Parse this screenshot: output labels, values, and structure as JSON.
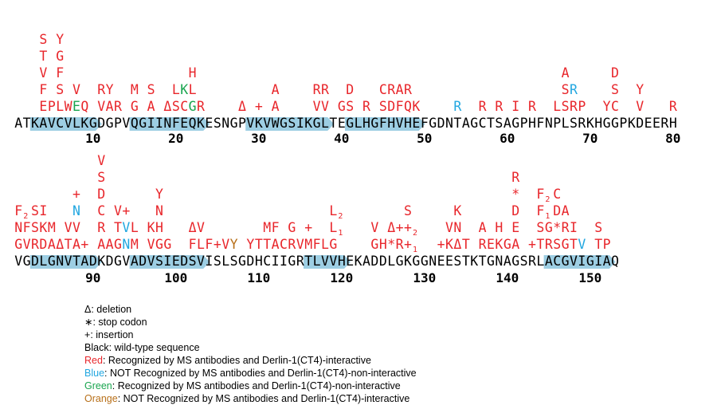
{
  "colors": {
    "red": "#e8262b",
    "blue": "#22a7e0",
    "green": "#1aa54f",
    "orange": "#b8701a",
    "black": "#000000",
    "strand": "#9dcee3"
  },
  "sequence": {
    "line1": "ATKAVCVLKGDGPVQGIINFEQKESNGPVKVWGSIKGLTEGLHGFHVHEFGDNTAGCTSAGPHFNPLSRKHGGPKDEERH",
    "line2": "VGDLGNVTADKDGVADVSIEDSVISLSGDHCIIGRTLVVHEKADDLGKGGNEESTKTGNAGSRLACGVIGIAQ",
    "ticks1": [
      "10",
      "20",
      "30",
      "40",
      "50",
      "60",
      "70",
      "80"
    ],
    "ticks2": [
      "90",
      "100",
      "110",
      "120",
      "130",
      "140",
      "150"
    ]
  },
  "mutations": [
    {
      "pos": 4,
      "stack": [
        {
          "t": "E",
          "c": "red"
        },
        {
          "t": "F",
          "c": "red"
        },
        {
          "t": "V",
          "c": "red"
        },
        {
          "t": "T",
          "c": "red"
        },
        {
          "t": "S",
          "c": "red"
        }
      ]
    },
    {
      "pos": 5,
      "stack": [
        {
          "t": "P",
          "c": "red"
        }
      ]
    },
    {
      "pos": 6,
      "stack": [
        {
          "t": "L",
          "c": "red"
        },
        {
          "t": "S",
          "c": "red"
        },
        {
          "t": "F",
          "c": "red"
        },
        {
          "t": "G",
          "c": "red"
        },
        {
          "t": "Y",
          "c": "red"
        }
      ]
    },
    {
      "pos": 7,
      "stack": [
        {
          "t": "W",
          "c": "red"
        }
      ]
    },
    {
      "pos": 8,
      "stack": [
        {
          "t": "E",
          "c": "green"
        },
        {
          "t": "V",
          "c": "red"
        }
      ]
    },
    {
      "pos": 9,
      "stack": [
        {
          "t": "Q",
          "c": "red"
        }
      ]
    },
    {
      "pos": 11,
      "stack": [
        {
          "t": "V",
          "c": "red"
        },
        {
          "t": "R",
          "c": "red"
        }
      ]
    },
    {
      "pos": 12,
      "stack": [
        {
          "t": "A",
          "c": "red"
        },
        {
          "t": "Y",
          "c": "red"
        }
      ]
    },
    {
      "pos": 13,
      "stack": [
        {
          "t": "R",
          "c": "red"
        }
      ]
    },
    {
      "pos": 15,
      "stack": [
        {
          "t": "G",
          "c": "red"
        },
        {
          "t": "M",
          "c": "red"
        }
      ]
    },
    {
      "pos": 17,
      "stack": [
        {
          "t": "A",
          "c": "red"
        },
        {
          "t": "S",
          "c": "red"
        }
      ]
    },
    {
      "pos": 19,
      "stack": [
        {
          "t": "Δ",
          "c": "red"
        }
      ]
    },
    {
      "pos": 20,
      "stack": [
        {
          "t": "S",
          "c": "red"
        },
        {
          "t": "L",
          "c": "red"
        }
      ]
    },
    {
      "pos": 21,
      "stack": [
        {
          "t": "C",
          "c": "red"
        },
        {
          "t": "K",
          "c": "green"
        }
      ]
    },
    {
      "pos": 22,
      "stack": [
        {
          "t": "G",
          "c": "green"
        },
        {
          "t": "L",
          "c": "red"
        },
        {
          "t": "H",
          "c": "red"
        }
      ]
    },
    {
      "pos": 23,
      "stack": [
        {
          "t": "R",
          "c": "red"
        }
      ]
    },
    {
      "pos": 28,
      "stack": [
        {
          "t": "Δ",
          "c": "red"
        }
      ]
    },
    {
      "pos": 30,
      "stack": [
        {
          "t": "+",
          "c": "red"
        }
      ]
    },
    {
      "pos": 32,
      "stack": [
        {
          "t": "A",
          "c": "red"
        },
        {
          "t": "A",
          "c": "red"
        }
      ]
    },
    {
      "pos": 37,
      "stack": [
        {
          "t": "V",
          "c": "red"
        },
        {
          "t": "R",
          "c": "red"
        }
      ]
    },
    {
      "pos": 38,
      "stack": [
        {
          "t": "V",
          "c": "red"
        },
        {
          "t": "R",
          "c": "red"
        }
      ]
    },
    {
      "pos": 40,
      "stack": [
        {
          "t": "G",
          "c": "red"
        }
      ]
    },
    {
      "pos": 41,
      "stack": [
        {
          "t": "S",
          "c": "red"
        },
        {
          "t": "D",
          "c": "red"
        }
      ]
    },
    {
      "pos": 43,
      "stack": [
        {
          "t": "R",
          "c": "red"
        }
      ]
    },
    {
      "pos": 45,
      "stack": [
        {
          "t": "S",
          "c": "red"
        },
        {
          "t": "C",
          "c": "red"
        }
      ]
    },
    {
      "pos": 46,
      "stack": [
        {
          "t": "D",
          "c": "red"
        },
        {
          "t": "R",
          "c": "red"
        }
      ]
    },
    {
      "pos": 47,
      "stack": [
        {
          "t": "F",
          "c": "red"
        },
        {
          "t": "A",
          "c": "red"
        }
      ]
    },
    {
      "pos": 48,
      "stack": [
        {
          "t": "Q",
          "c": "red"
        },
        {
          "t": "R",
          "c": "red"
        }
      ]
    },
    {
      "pos": 49,
      "stack": [
        {
          "t": "K",
          "c": "red"
        }
      ]
    },
    {
      "pos": 54,
      "stack": [
        {
          "t": "R",
          "c": "blue"
        }
      ]
    },
    {
      "pos": 57,
      "stack": [
        {
          "t": "R",
          "c": "red"
        }
      ]
    },
    {
      "pos": 59,
      "stack": [
        {
          "t": "R",
          "c": "red"
        }
      ]
    },
    {
      "pos": 61,
      "stack": [
        {
          "t": "I",
          "c": "red"
        }
      ]
    },
    {
      "pos": 63,
      "stack": [
        {
          "t": "R",
          "c": "red"
        }
      ]
    },
    {
      "pos": 66,
      "stack": [
        {
          "t": "L",
          "c": "red"
        }
      ]
    },
    {
      "pos": 67,
      "stack": [
        {
          "t": "S",
          "c": "red"
        },
        {
          "t": "S",
          "c": "red"
        },
        {
          "t": "A",
          "c": "red"
        }
      ]
    },
    {
      "pos": 68,
      "stack": [
        {
          "t": "R",
          "c": "red"
        },
        {
          "t": "R",
          "c": "blue"
        }
      ]
    },
    {
      "pos": 69,
      "stack": [
        {
          "t": "P",
          "c": "red"
        }
      ]
    },
    {
      "pos": 72,
      "stack": [
        {
          "t": "Y",
          "c": "red"
        }
      ]
    },
    {
      "pos": 73,
      "stack": [
        {
          "t": "C",
          "c": "red"
        },
        {
          "t": "S",
          "c": "red"
        },
        {
          "t": "D",
          "c": "red"
        }
      ]
    },
    {
      "pos": 76,
      "stack": [
        {
          "t": "V",
          "c": "red"
        },
        {
          "t": "Y",
          "c": "red"
        }
      ]
    },
    {
      "pos": 80,
      "stack": [
        {
          "t": "R",
          "c": "red"
        }
      ]
    },
    {
      "pos": 81,
      "stack": [
        {
          "t": "G",
          "c": "red"
        },
        {
          "t": "N",
          "c": "red"
        },
        {
          "t": "F",
          "c": "red",
          "sub": "2"
        }
      ]
    },
    {
      "pos": 82,
      "stack": [
        {
          "t": "V",
          "c": "red"
        },
        {
          "t": "F",
          "c": "red"
        }
      ]
    },
    {
      "pos": 83,
      "stack": [
        {
          "t": "R",
          "c": "red"
        },
        {
          "t": "S",
          "c": "red"
        },
        {
          "t": "S",
          "c": "red"
        }
      ]
    },
    {
      "pos": 84,
      "stack": [
        {
          "t": "D",
          "c": "red"
        },
        {
          "t": "K",
          "c": "red"
        },
        {
          "t": "I",
          "c": "red"
        }
      ]
    },
    {
      "pos": 85,
      "stack": [
        {
          "t": "A",
          "c": "red"
        },
        {
          "t": "M",
          "c": "red"
        }
      ]
    },
    {
      "pos": 86,
      "stack": [
        {
          "t": "Δ",
          "c": "red"
        }
      ]
    },
    {
      "pos": 87,
      "stack": [
        {
          "t": "T",
          "c": "red"
        },
        {
          "t": "V",
          "c": "red"
        }
      ]
    },
    {
      "pos": 88,
      "stack": [
        {
          "t": "A",
          "c": "red"
        },
        {
          "t": "V",
          "c": "red"
        },
        {
          "t": "N",
          "c": "blue"
        },
        {
          "t": "+",
          "c": "red"
        }
      ]
    },
    {
      "pos": 89,
      "stack": [
        {
          "t": "+",
          "c": "red"
        }
      ]
    },
    {
      "pos": 91,
      "stack": [
        {
          "t": "A",
          "c": "red"
        },
        {
          "t": "R",
          "c": "red"
        },
        {
          "t": "C",
          "c": "red"
        },
        {
          "t": "D",
          "c": "red"
        },
        {
          "t": "S",
          "c": "red"
        },
        {
          "t": "V",
          "c": "red"
        }
      ]
    },
    {
      "pos": 92,
      "stack": [
        {
          "t": "A",
          "c": "red"
        }
      ]
    },
    {
      "pos": 93,
      "stack": [
        {
          "t": "G",
          "c": "red"
        },
        {
          "t": "T",
          "c": "red"
        },
        {
          "t": "V",
          "c": "red"
        }
      ]
    },
    {
      "pos": 94,
      "stack": [
        {
          "t": "N",
          "c": "blue"
        },
        {
          "t": "V",
          "c": "blue"
        },
        {
          "t": "+",
          "c": "red"
        }
      ]
    },
    {
      "pos": 95,
      "stack": [
        {
          "t": "M",
          "c": "red"
        },
        {
          "t": "L",
          "c": "red"
        }
      ]
    },
    {
      "pos": 97,
      "stack": [
        {
          "t": "V",
          "c": "red"
        },
        {
          "t": "K",
          "c": "red"
        }
      ]
    },
    {
      "pos": 98,
      "stack": [
        {
          "t": "G",
          "c": "red"
        },
        {
          "t": "H",
          "c": "red"
        },
        {
          "t": "N",
          "c": "red"
        },
        {
          "t": "Y",
          "c": "red"
        }
      ]
    },
    {
      "pos": 99,
      "stack": [
        {
          "t": "G",
          "c": "red"
        }
      ]
    },
    {
      "pos": 102,
      "stack": [
        {
          "t": "F",
          "c": "red"
        },
        {
          "t": "Δ",
          "c": "red"
        }
      ]
    },
    {
      "pos": 103,
      "stack": [
        {
          "t": "L",
          "c": "red"
        },
        {
          "t": "V",
          "c": "red"
        }
      ]
    },
    {
      "pos": 104,
      "stack": [
        {
          "t": "F",
          "c": "red"
        }
      ]
    },
    {
      "pos": 105,
      "stack": [
        {
          "t": "+",
          "c": "red"
        }
      ]
    },
    {
      "pos": 106,
      "stack": [
        {
          "t": "V",
          "c": "red"
        }
      ]
    },
    {
      "pos": 107,
      "stack": [
        {
          "t": "Y",
          "c": "orange"
        }
      ]
    },
    {
      "pos": 109,
      "stack": [
        {
          "t": "Y",
          "c": "red"
        }
      ]
    },
    {
      "pos": 110,
      "stack": [
        {
          "t": "T",
          "c": "red"
        }
      ]
    },
    {
      "pos": 111,
      "stack": [
        {
          "t": "T",
          "c": "red"
        },
        {
          "t": "M",
          "c": "red"
        }
      ]
    },
    {
      "pos": 112,
      "stack": [
        {
          "t": "A",
          "c": "red"
        },
        {
          "t": "F",
          "c": "red"
        }
      ]
    },
    {
      "pos": 113,
      "stack": [
        {
          "t": "C",
          "c": "red"
        }
      ]
    },
    {
      "pos": 114,
      "stack": [
        {
          "t": "R",
          "c": "red"
        },
        {
          "t": "G",
          "c": "red"
        }
      ]
    },
    {
      "pos": 115,
      "stack": [
        {
          "t": "V",
          "c": "red"
        }
      ]
    },
    {
      "pos": 116,
      "stack": [
        {
          "t": "M",
          "c": "red"
        },
        {
          "t": "+",
          "c": "red"
        }
      ]
    },
    {
      "pos": 117,
      "stack": [
        {
          "t": "F",
          "c": "red"
        }
      ]
    },
    {
      "pos": 118,
      "stack": [
        {
          "t": "L",
          "c": "red"
        }
      ]
    },
    {
      "pos": 119,
      "stack": [
        {
          "t": "G",
          "c": "red"
        },
        {
          "t": "L",
          "c": "red",
          "sub": "1"
        },
        {
          "t": "L",
          "c": "red",
          "sub": "2"
        }
      ]
    },
    {
      "pos": 124,
      "stack": [
        {
          "t": "G",
          "c": "red"
        },
        {
          "t": "V",
          "c": "red"
        }
      ]
    },
    {
      "pos": 125,
      "stack": [
        {
          "t": "H",
          "c": "red"
        }
      ]
    },
    {
      "pos": 126,
      "stack": [
        {
          "t": "*",
          "c": "red"
        },
        {
          "t": "Δ",
          "c": "red"
        }
      ]
    },
    {
      "pos": 127,
      "stack": [
        {
          "t": "R",
          "c": "red"
        },
        {
          "t": "+",
          "c": "red"
        }
      ]
    },
    {
      "pos": 128,
      "stack": [
        {
          "t": "+",
          "c": "red",
          "sub": "1"
        },
        {
          "t": "+",
          "c": "red",
          "sub": "2"
        },
        {
          "t": "S",
          "c": "red"
        }
      ]
    },
    {
      "pos": 132,
      "stack": [
        {
          "t": "+",
          "c": "red"
        }
      ]
    },
    {
      "pos": 133,
      "stack": [
        {
          "t": "K",
          "c": "red"
        },
        {
          "t": "V",
          "c": "red"
        }
      ]
    },
    {
      "pos": 134,
      "stack": [
        {
          "t": "Δ",
          "c": "red"
        },
        {
          "t": "N",
          "c": "red"
        },
        {
          "t": "K",
          "c": "red"
        }
      ]
    },
    {
      "pos": 135,
      "stack": [
        {
          "t": "T",
          "c": "red"
        }
      ]
    },
    {
      "pos": 137,
      "stack": [
        {
          "t": "R",
          "c": "red"
        },
        {
          "t": "A",
          "c": "red"
        }
      ]
    },
    {
      "pos": 138,
      "stack": [
        {
          "t": "E",
          "c": "red"
        }
      ]
    },
    {
      "pos": 139,
      "stack": [
        {
          "t": "K",
          "c": "red"
        },
        {
          "t": "H",
          "c": "red"
        }
      ]
    },
    {
      "pos": 140,
      "stack": [
        {
          "t": "G",
          "c": "red"
        }
      ]
    },
    {
      "pos": 141,
      "stack": [
        {
          "t": "A",
          "c": "red"
        },
        {
          "t": "E",
          "c": "red"
        },
        {
          "t": "D",
          "c": "red"
        },
        {
          "t": "*",
          "c": "red"
        },
        {
          "t": "R",
          "c": "red"
        }
      ]
    },
    {
      "pos": 143,
      "stack": [
        {
          "t": "+",
          "c": "red"
        }
      ]
    },
    {
      "pos": 144,
      "stack": [
        {
          "t": "T",
          "c": "red"
        },
        {
          "t": "S",
          "c": "red"
        },
        {
          "t": "F",
          "c": "red",
          "sub": "1"
        },
        {
          "t": "F",
          "c": "red",
          "sub": "2"
        }
      ]
    },
    {
      "pos": 145,
      "stack": [
        {
          "t": "R",
          "c": "red"
        },
        {
          "t": "G",
          "c": "red"
        }
      ]
    },
    {
      "pos": 146,
      "stack": [
        {
          "t": "S",
          "c": "red"
        },
        {
          "t": "*",
          "c": "red"
        },
        {
          "t": "D",
          "c": "red"
        },
        {
          "t": "C",
          "c": "red"
        }
      ]
    },
    {
      "pos": 147,
      "stack": [
        {
          "t": "G",
          "c": "red"
        },
        {
          "t": "R",
          "c": "red"
        },
        {
          "t": "A",
          "c": "red"
        }
      ]
    },
    {
      "pos": 148,
      "stack": [
        {
          "t": "T",
          "c": "red"
        },
        {
          "t": "I",
          "c": "red"
        }
      ]
    },
    {
      "pos": 149,
      "stack": [
        {
          "t": "V",
          "c": "blue"
        }
      ]
    },
    {
      "pos": 151,
      "stack": [
        {
          "t": "T",
          "c": "red"
        },
        {
          "t": "S",
          "c": "red"
        }
      ]
    },
    {
      "pos": 152,
      "stack": [
        {
          "t": "P",
          "c": "red"
        }
      ]
    }
  ],
  "legend": [
    {
      "key": "Δ",
      "key_color": "black",
      "text": ": deletion"
    },
    {
      "key": "∗",
      "key_color": "black",
      "text": ": stop codon"
    },
    {
      "key": "+",
      "key_color": "black",
      "text": ": insertion"
    },
    {
      "key": "",
      "key_color": "black",
      "text": "Black: wild-type sequence"
    },
    {
      "key": "Red",
      "key_color": "red",
      "text": ": Recognized by MS antibodies and Derlin-1(CT4)-interactive"
    },
    {
      "key": "Blue",
      "key_color": "blue",
      "text": ": NOT Recognized by MS antibodies and Derlin-1(CT4)-non-interactive"
    },
    {
      "key": "Green",
      "key_color": "green",
      "text": ": Recognized by MS antibodies and Derlin-1(CT4)-non-interactive"
    },
    {
      "key": "Orange",
      "key_color": "orange",
      "text": ": NOT Recognized by MS antibodies and Derlin-1(CT4)-interactive"
    }
  ]
}
